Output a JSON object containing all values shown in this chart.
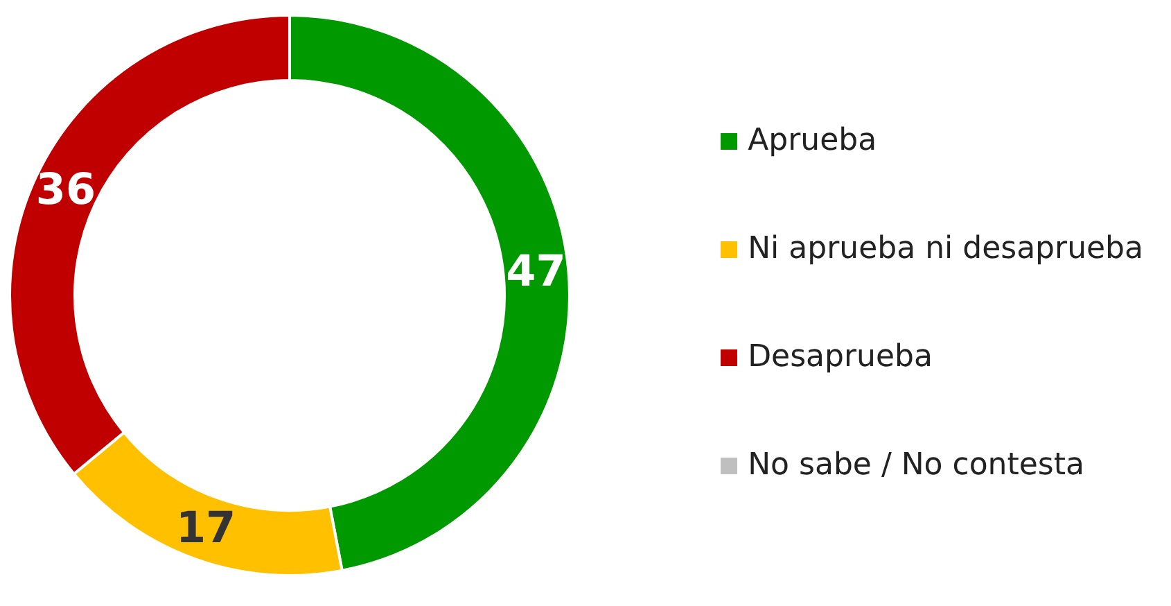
{
  "chart_data": {
    "type": "donut",
    "categories": [
      "Aprueba",
      "Ni aprueba ni desaprueba",
      "Desaprueba",
      "No sabe / No contesta"
    ],
    "values": [
      47,
      17,
      36,
      0
    ],
    "colors": [
      "#009900",
      "#ffc000",
      "#c00000",
      "#bfbfbf"
    ],
    "value_labels": [
      "47",
      "17",
      "36",
      null
    ],
    "legend": "right"
  }
}
